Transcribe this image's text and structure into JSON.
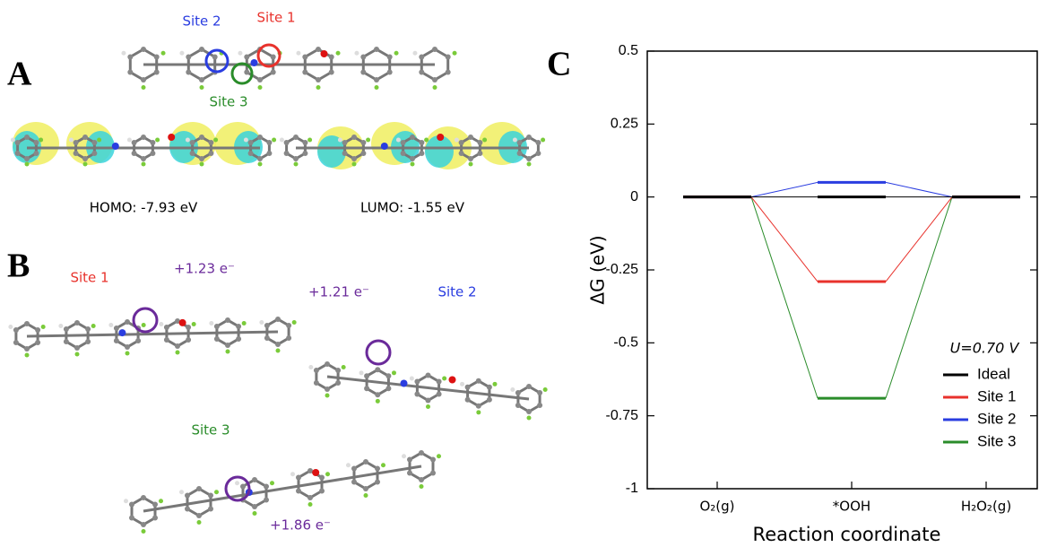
{
  "panels": {
    "a": "A",
    "b": "B",
    "c": "C"
  },
  "panel_a": {
    "site_labels": [
      "Site 2",
      "Site 1",
      "Site 3"
    ],
    "homo": "HOMO: -7.93 eV",
    "lumo": "LUMO: -1.55 eV"
  },
  "panel_b": {
    "sites": [
      "Site 1",
      "Site 2",
      "Site 3"
    ],
    "charges": [
      "+1.23 e⁻",
      "+1.21 e⁻",
      "+1.86 e⁻"
    ]
  },
  "chart_data": {
    "type": "energy-levels",
    "xlabel": "Reaction coordinate",
    "ylabel": "ΔG (eV)",
    "categories": [
      "O₂(g)",
      "*OOH",
      "H₂O₂(g)"
    ],
    "ylim": [
      -1,
      0.5
    ],
    "yticks": [
      -1,
      -0.75,
      -0.5,
      -0.25,
      0,
      0.25,
      0.5
    ],
    "legend_title": "U=0.70 V",
    "legend": "lower right",
    "series": [
      {
        "name": "Ideal",
        "color": "#000000",
        "values": [
          0,
          0,
          0
        ]
      },
      {
        "name": "Site 1",
        "color": "#e8322c",
        "values": [
          0,
          -0.29,
          0
        ]
      },
      {
        "name": "Site 2",
        "color": "#2a3de0",
        "values": [
          0,
          0.05,
          0
        ]
      },
      {
        "name": "Site 3",
        "color": "#2a8c2a",
        "values": [
          0,
          -0.69,
          0
        ]
      }
    ]
  }
}
